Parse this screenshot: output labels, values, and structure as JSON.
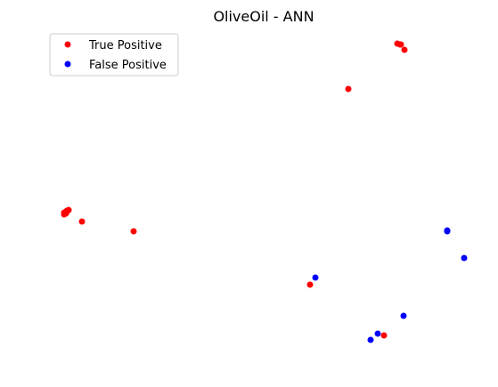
{
  "chart_data": {
    "type": "scatter",
    "title": "OliveOil - ANN",
    "xlabel": "",
    "ylabel": "",
    "axes_visible": false,
    "grid": false,
    "legend_position": "top-left",
    "series": [
      {
        "name": "True Positive",
        "color": "#ff0000",
        "points": [
          [
            446,
            49
          ],
          [
            449,
            50
          ],
          [
            450,
            50
          ],
          [
            454,
            56
          ],
          [
            391,
            100
          ],
          [
            72,
            241
          ],
          [
            72,
            239
          ],
          [
            74,
            238
          ],
          [
            75,
            237
          ],
          [
            77,
            236
          ],
          [
            74,
            240
          ],
          [
            76,
            237
          ],
          [
            92,
            249
          ],
          [
            150,
            260
          ],
          [
            348,
            320
          ],
          [
            431,
            377
          ]
        ]
      },
      {
        "name": "False Positive",
        "color": "#0000ff",
        "points": [
          [
            502,
            259
          ],
          [
            502,
            260
          ],
          [
            521,
            290
          ],
          [
            354,
            312
          ],
          [
            453,
            355
          ],
          [
            424,
            375
          ],
          [
            416,
            382
          ]
        ]
      }
    ]
  }
}
